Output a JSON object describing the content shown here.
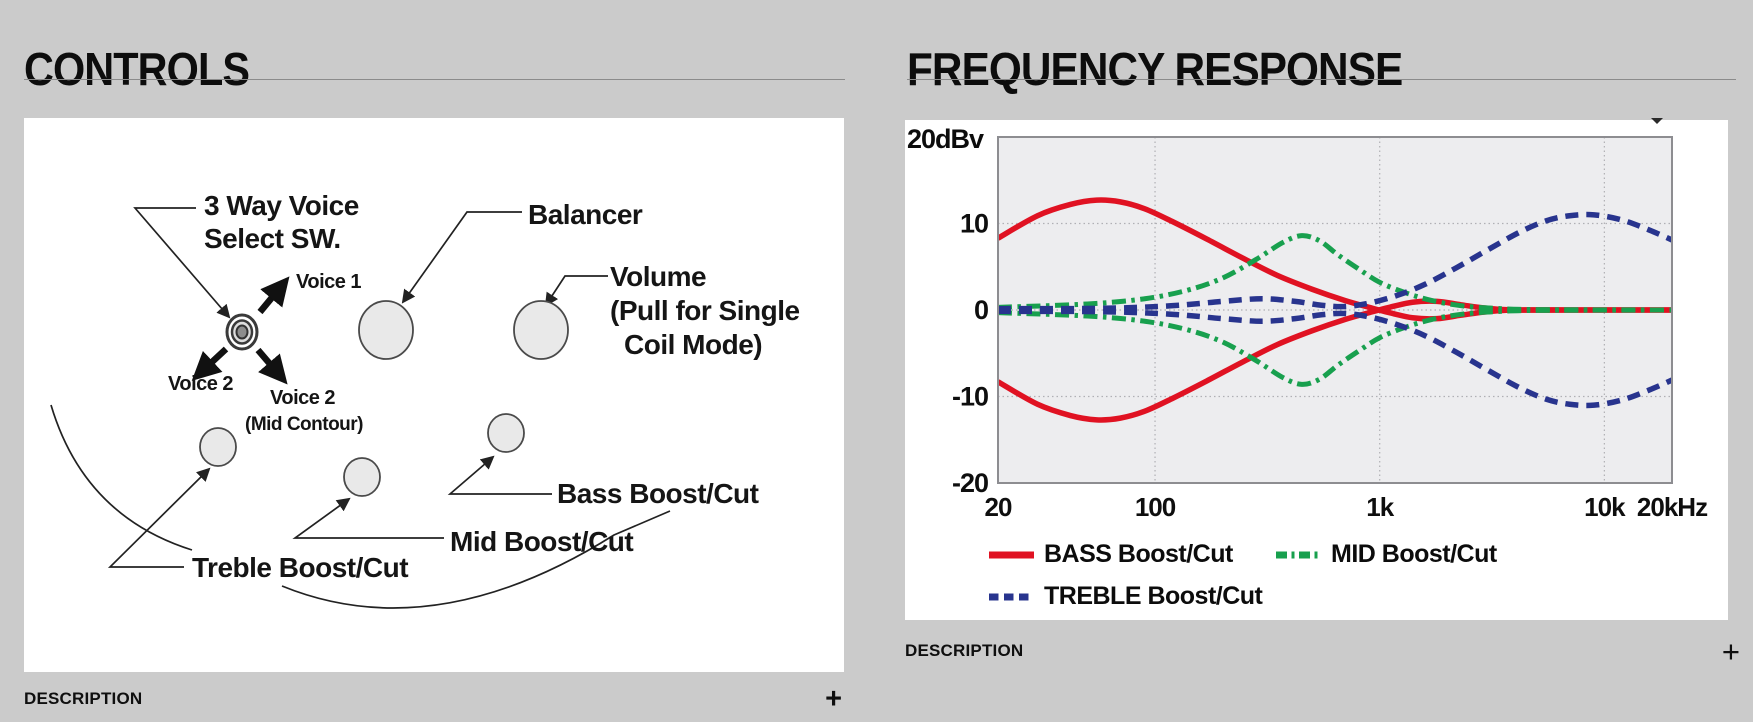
{
  "left_section": {
    "title": "CONTROLS",
    "description_label": "DESCRIPTION",
    "expand_icon": "+",
    "diagram_labels": {
      "voice_select_line1": "3 Way Voice",
      "voice_select_line2": "Select SW.",
      "voice1": "Voice 1",
      "voice2_left": "Voice 2",
      "voice2_right_line1": "Voice 2",
      "voice2_right_line2": "(Mid Contour)",
      "balancer": "Balancer",
      "volume_line1": "Volume",
      "volume_line2": "(Pull for Single",
      "volume_line3": "Coil Mode)",
      "bass": "Bass Boost/Cut",
      "mid": "Mid Boost/Cut",
      "treble": "Treble Boost/Cut"
    }
  },
  "right_section": {
    "title": "FREQUENCY RESPONSE",
    "description_label": "DESCRIPTION",
    "expand_icon": "+"
  },
  "chart_data": {
    "type": "line",
    "x_scale": "log",
    "xlim": [
      20,
      20000
    ],
    "ylim": [
      -20,
      20
    ],
    "y_axis_top_label": "20dBv",
    "y_ticks": [
      {
        "db": 10,
        "label": "10"
      },
      {
        "db": 0,
        "label": "0"
      },
      {
        "db": -10,
        "label": "-10"
      },
      {
        "db": -20,
        "label": "-20"
      }
    ],
    "x_ticks": [
      {
        "f": 20,
        "label": "20"
      },
      {
        "f": 100,
        "label": "100"
      },
      {
        "f": 1000,
        "label": "1k"
      },
      {
        "f": 10000,
        "label": "10k"
      },
      {
        "f": 20000,
        "label": "20kHz"
      }
    ],
    "grid_x": [
      100,
      1000,
      10000
    ],
    "grid_y": [
      10,
      0,
      -10
    ],
    "legend": [
      {
        "label": "BASS Boost/Cut",
        "color": "#e01222",
        "dash": "solid"
      },
      {
        "label": "MID Boost/Cut",
        "color": "#18a04e",
        "dash": "dashdot"
      },
      {
        "label": "TREBLE Boost/Cut",
        "color": "#28348e",
        "dash": "dashed"
      }
    ],
    "series": [
      {
        "id": "bass-boost",
        "name": "BASS Boost",
        "color": "#e01222",
        "dash": "solid",
        "width": 5.5,
        "points": [
          [
            20,
            8.3
          ],
          [
            30,
            10.9
          ],
          [
            42,
            12.2
          ],
          [
            55,
            12.7
          ],
          [
            70,
            12.5
          ],
          [
            90,
            11.7
          ],
          [
            120,
            10.2
          ],
          [
            170,
            8.2
          ],
          [
            250,
            5.9
          ],
          [
            350,
            4.0
          ],
          [
            500,
            2.4
          ],
          [
            700,
            1.1
          ],
          [
            900,
            0.3
          ],
          [
            1100,
            -0.3
          ],
          [
            1400,
            -0.9
          ],
          [
            1800,
            -1.0
          ],
          [
            2300,
            -0.6
          ],
          [
            3000,
            -0.2
          ],
          [
            4000,
            0
          ],
          [
            8000,
            0
          ],
          [
            20000,
            0
          ]
        ]
      },
      {
        "id": "bass-cut",
        "name": "BASS Cut",
        "color": "#e01222",
        "dash": "solid",
        "width": 5.5,
        "points": [
          [
            20,
            -8.3
          ],
          [
            30,
            -10.9
          ],
          [
            42,
            -12.2
          ],
          [
            55,
            -12.7
          ],
          [
            70,
            -12.5
          ],
          [
            90,
            -11.7
          ],
          [
            120,
            -10.2
          ],
          [
            170,
            -8.2
          ],
          [
            250,
            -5.9
          ],
          [
            350,
            -4.0
          ],
          [
            500,
            -2.4
          ],
          [
            700,
            -1.1
          ],
          [
            900,
            -0.3
          ],
          [
            1100,
            0.3
          ],
          [
            1400,
            0.9
          ],
          [
            1800,
            1.0
          ],
          [
            2300,
            0.6
          ],
          [
            3000,
            0.2
          ],
          [
            4000,
            0
          ],
          [
            8000,
            0
          ],
          [
            20000,
            0
          ]
        ]
      },
      {
        "id": "mid-boost",
        "name": "MID Boost",
        "color": "#18a04e",
        "dash": "dashdot",
        "width": 5,
        "points": [
          [
            20,
            0.3
          ],
          [
            50,
            0.7
          ],
          [
            90,
            1.3
          ],
          [
            140,
            2.3
          ],
          [
            200,
            3.7
          ],
          [
            280,
            5.8
          ],
          [
            370,
            7.8
          ],
          [
            450,
            8.6
          ],
          [
            540,
            8.0
          ],
          [
            650,
            6.4
          ],
          [
            800,
            4.8
          ],
          [
            1000,
            3.2
          ],
          [
            1300,
            2.0
          ],
          [
            1700,
            1.1
          ],
          [
            2300,
            0.5
          ],
          [
            3200,
            0.2
          ],
          [
            5000,
            0.05
          ],
          [
            20000,
            0
          ]
        ]
      },
      {
        "id": "mid-cut",
        "name": "MID Cut",
        "color": "#18a04e",
        "dash": "dashdot",
        "width": 5,
        "points": [
          [
            20,
            -0.3
          ],
          [
            50,
            -0.7
          ],
          [
            90,
            -1.3
          ],
          [
            140,
            -2.3
          ],
          [
            200,
            -3.7
          ],
          [
            280,
            -5.8
          ],
          [
            370,
            -7.8
          ],
          [
            450,
            -8.6
          ],
          [
            540,
            -8.0
          ],
          [
            650,
            -6.4
          ],
          [
            800,
            -4.8
          ],
          [
            1000,
            -3.2
          ],
          [
            1300,
            -2.0
          ],
          [
            1700,
            -1.1
          ],
          [
            2300,
            -0.5
          ],
          [
            3200,
            -0.2
          ],
          [
            5000,
            -0.05
          ],
          [
            20000,
            0
          ]
        ]
      },
      {
        "id": "treble-boost",
        "name": "TREBLE Boost",
        "color": "#28348e",
        "dash": "dashed",
        "width": 5.5,
        "points": [
          [
            20,
            0.15
          ],
          [
            60,
            0.2
          ],
          [
            120,
            0.5
          ],
          [
            200,
            1.0
          ],
          [
            300,
            1.3
          ],
          [
            420,
            1.0
          ],
          [
            550,
            0.55
          ],
          [
            700,
            0.4
          ],
          [
            900,
            0.8
          ],
          [
            1200,
            1.7
          ],
          [
            1600,
            3.0
          ],
          [
            2200,
            4.9
          ],
          [
            3000,
            6.9
          ],
          [
            4200,
            9.0
          ],
          [
            5500,
            10.3
          ],
          [
            7000,
            10.9
          ],
          [
            9000,
            11.0
          ],
          [
            12000,
            10.4
          ],
          [
            16000,
            9.2
          ],
          [
            20000,
            8.1
          ]
        ]
      },
      {
        "id": "treble-cut",
        "name": "TREBLE Cut",
        "color": "#28348e",
        "dash": "dashed",
        "width": 5.5,
        "points": [
          [
            20,
            -0.15
          ],
          [
            60,
            -0.2
          ],
          [
            120,
            -0.5
          ],
          [
            200,
            -1.0
          ],
          [
            300,
            -1.3
          ],
          [
            420,
            -1.0
          ],
          [
            550,
            -0.55
          ],
          [
            700,
            -0.4
          ],
          [
            900,
            -0.8
          ],
          [
            1200,
            -1.7
          ],
          [
            1600,
            -3.0
          ],
          [
            2200,
            -4.9
          ],
          [
            3000,
            -6.9
          ],
          [
            4200,
            -9.0
          ],
          [
            5500,
            -10.3
          ],
          [
            7000,
            -10.9
          ],
          [
            9000,
            -11.0
          ],
          [
            12000,
            -10.4
          ],
          [
            16000,
            -9.2
          ],
          [
            20000,
            -8.1
          ]
        ]
      }
    ]
  }
}
